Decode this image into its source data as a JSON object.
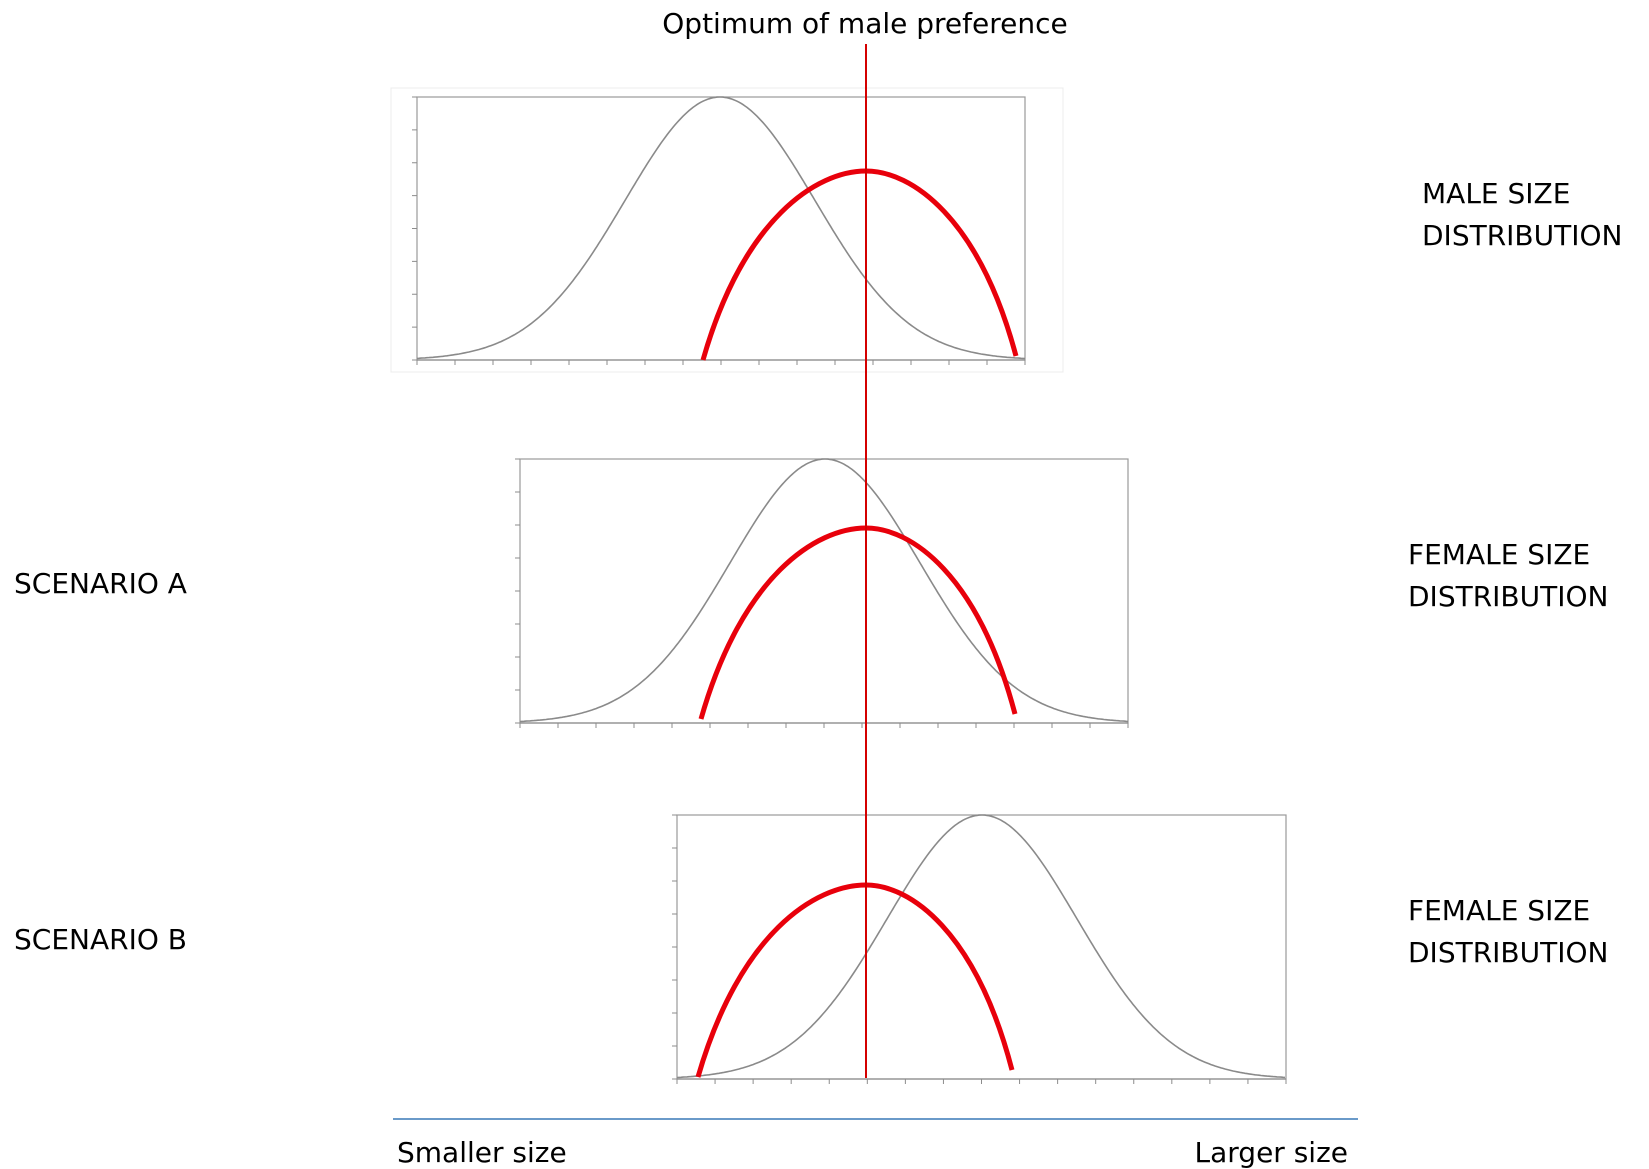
{
  "optimum_label": "Optimum of male preference",
  "panels": [
    {
      "id": "male",
      "row_label": "",
      "dist_label_line1": "MALE SIZE",
      "dist_label_line2": "DISTRIBUTION"
    },
    {
      "id": "female-a",
      "row_label": "SCENARIO A",
      "dist_label_line1": "FEMALE SIZE",
      "dist_label_line2": "DISTRIBUTION"
    },
    {
      "id": "female-b",
      "row_label": "SCENARIO B",
      "dist_label_line1": "FEMALE SIZE",
      "dist_label_line2": "DISTRIBUTION"
    }
  ],
  "size_axis": {
    "left_label": "Smaller size",
    "right_label": "Larger size"
  },
  "colors": {
    "preference_curve": "#e8000b",
    "size_curve": "#8a8a8a",
    "optimum_line": "#d40000",
    "size_axis": "#6a9ac9"
  }
}
